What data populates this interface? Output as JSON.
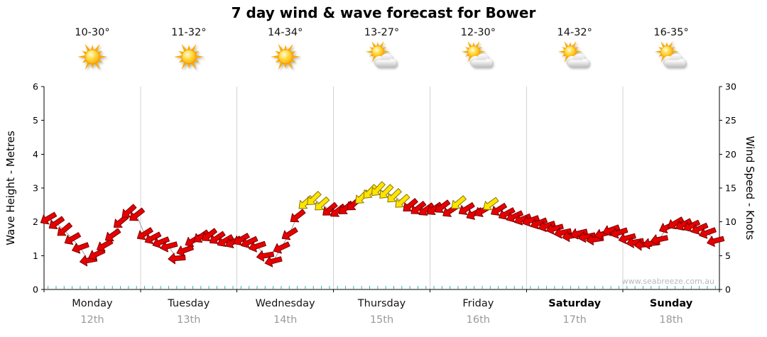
{
  "title": "7 day wind & wave forecast for Bower",
  "watermark": "www.seabreeze.com.au",
  "days": [
    {
      "temp_range": "10-30°",
      "icon": "sunny",
      "name": "Monday",
      "date": "12th",
      "bold": false
    },
    {
      "temp_range": "11-32°",
      "icon": "sunny",
      "name": "Tuesday",
      "date": "13th",
      "bold": false
    },
    {
      "temp_range": "14-34°",
      "icon": "sunny",
      "name": "Wednesday",
      "date": "14th",
      "bold": false
    },
    {
      "temp_range": "13-27°",
      "icon": "partly-cloudy",
      "name": "Thursday",
      "date": "15th",
      "bold": false
    },
    {
      "temp_range": "12-30°",
      "icon": "partly-cloudy",
      "name": "Friday",
      "date": "16th",
      "bold": false
    },
    {
      "temp_range": "14-32°",
      "icon": "partly-cloudy",
      "name": "Saturday",
      "date": "17th",
      "bold": true
    },
    {
      "temp_range": "16-35°",
      "icon": "partly-cloudy",
      "name": "Sunday",
      "date": "18th",
      "bold": true
    }
  ],
  "chart_data": {
    "type": "scatter",
    "title": "7 day wind & wave forecast for Bower",
    "y_left": {
      "label": "Wave Height - Metres",
      "min": 0,
      "max": 6,
      "ticks": [
        0,
        1,
        2,
        3,
        4,
        5,
        6
      ]
    },
    "y_right": {
      "label": "Wind Speed - Knots",
      "min": 0,
      "max": 30,
      "ticks": [
        0,
        5,
        10,
        15,
        20,
        25,
        30
      ]
    },
    "x_categories": [
      "Monday 12th",
      "Tuesday 13th",
      "Wednesday 14th",
      "Thursday 15th",
      "Friday 16th",
      "Saturday 17th",
      "Sunday 18th"
    ],
    "points_per_day": 12,
    "hours_per_point": 2,
    "unit": "knots",
    "colors": {
      "r": "#e60000",
      "y": "#ffe400"
    },
    "outlines": {
      "r": "#7a0000",
      "y": "#8a7400"
    },
    "series": [
      {
        "name": "wind-arrows",
        "point_format": [
          "knots",
          "arrow_rotation_deg",
          "color_key"
        ],
        "points": [
          [
            10.5,
            150,
            "r"
          ],
          [
            9.8,
            145,
            "r"
          ],
          [
            8.8,
            140,
            "r"
          ],
          [
            7.5,
            150,
            "r"
          ],
          [
            6.2,
            160,
            "r"
          ],
          [
            4.3,
            170,
            "r"
          ],
          [
            5.2,
            155,
            "r"
          ],
          [
            6.5,
            150,
            "r"
          ],
          [
            8.0,
            145,
            "r"
          ],
          [
            10.0,
            140,
            "r"
          ],
          [
            11.5,
            138,
            "r"
          ],
          [
            11.0,
            142,
            "r"
          ],
          [
            8.2,
            148,
            "r"
          ],
          [
            7.6,
            152,
            "r"
          ],
          [
            7.0,
            158,
            "r"
          ],
          [
            6.4,
            165,
            "r"
          ],
          [
            4.6,
            175,
            "r"
          ],
          [
            5.8,
            160,
            "r"
          ],
          [
            7.2,
            150,
            "r"
          ],
          [
            7.8,
            145,
            "r"
          ],
          [
            8.0,
            143,
            "r"
          ],
          [
            7.6,
            146,
            "r"
          ],
          [
            7.2,
            150,
            "r"
          ],
          [
            7.0,
            152,
            "r"
          ],
          [
            7.4,
            150,
            "r"
          ],
          [
            7.0,
            155,
            "r"
          ],
          [
            6.4,
            162,
            "r"
          ],
          [
            5.0,
            170,
            "r"
          ],
          [
            4.2,
            165,
            "r"
          ],
          [
            6.2,
            155,
            "r"
          ],
          [
            8.2,
            148,
            "r"
          ],
          [
            10.8,
            142,
            "r"
          ],
          [
            12.8,
            138,
            "y"
          ],
          [
            13.4,
            136,
            "y"
          ],
          [
            12.6,
            138,
            "y"
          ],
          [
            11.8,
            140,
            "r"
          ],
          [
            11.6,
            142,
            "r"
          ],
          [
            12.0,
            140,
            "r"
          ],
          [
            12.6,
            138,
            "r"
          ],
          [
            13.6,
            136,
            "y"
          ],
          [
            14.4,
            134,
            "y"
          ],
          [
            14.8,
            133,
            "y"
          ],
          [
            14.4,
            134,
            "y"
          ],
          [
            13.8,
            136,
            "y"
          ],
          [
            13.0,
            138,
            "y"
          ],
          [
            12.4,
            140,
            "r"
          ],
          [
            12.0,
            142,
            "r"
          ],
          [
            11.8,
            144,
            "r"
          ],
          [
            11.9,
            145,
            "r"
          ],
          [
            12.2,
            143,
            "r"
          ],
          [
            11.6,
            146,
            "r"
          ],
          [
            12.8,
            140,
            "y"
          ],
          [
            11.9,
            148,
            "r"
          ],
          [
            11.2,
            152,
            "r"
          ],
          [
            11.6,
            150,
            "r"
          ],
          [
            12.6,
            144,
            "y"
          ],
          [
            11.8,
            148,
            "r"
          ],
          [
            11.2,
            152,
            "r"
          ],
          [
            10.8,
            155,
            "r"
          ],
          [
            10.4,
            158,
            "r"
          ],
          [
            10.2,
            160,
            "r"
          ],
          [
            9.8,
            158,
            "r"
          ],
          [
            9.4,
            162,
            "r"
          ],
          [
            9.0,
            165,
            "r"
          ],
          [
            8.4,
            168,
            "r"
          ],
          [
            7.9,
            170,
            "r"
          ],
          [
            8.3,
            166,
            "r"
          ],
          [
            7.8,
            168,
            "r"
          ],
          [
            7.4,
            172,
            "r"
          ],
          [
            8.2,
            165,
            "r"
          ],
          [
            8.8,
            160,
            "r"
          ],
          [
            8.4,
            162,
            "r"
          ],
          [
            7.6,
            165,
            "r"
          ],
          [
            7.0,
            170,
            "r"
          ],
          [
            6.6,
            175,
            "r"
          ],
          [
            6.8,
            172,
            "r"
          ],
          [
            7.4,
            168,
            "r"
          ],
          [
            9.2,
            155,
            "r"
          ],
          [
            9.8,
            150,
            "r"
          ],
          [
            9.6,
            152,
            "r"
          ],
          [
            9.4,
            154,
            "r"
          ],
          [
            9.0,
            156,
            "r"
          ],
          [
            8.4,
            160,
            "r"
          ],
          [
            7.2,
            165,
            "r"
          ]
        ]
      }
    ]
  }
}
